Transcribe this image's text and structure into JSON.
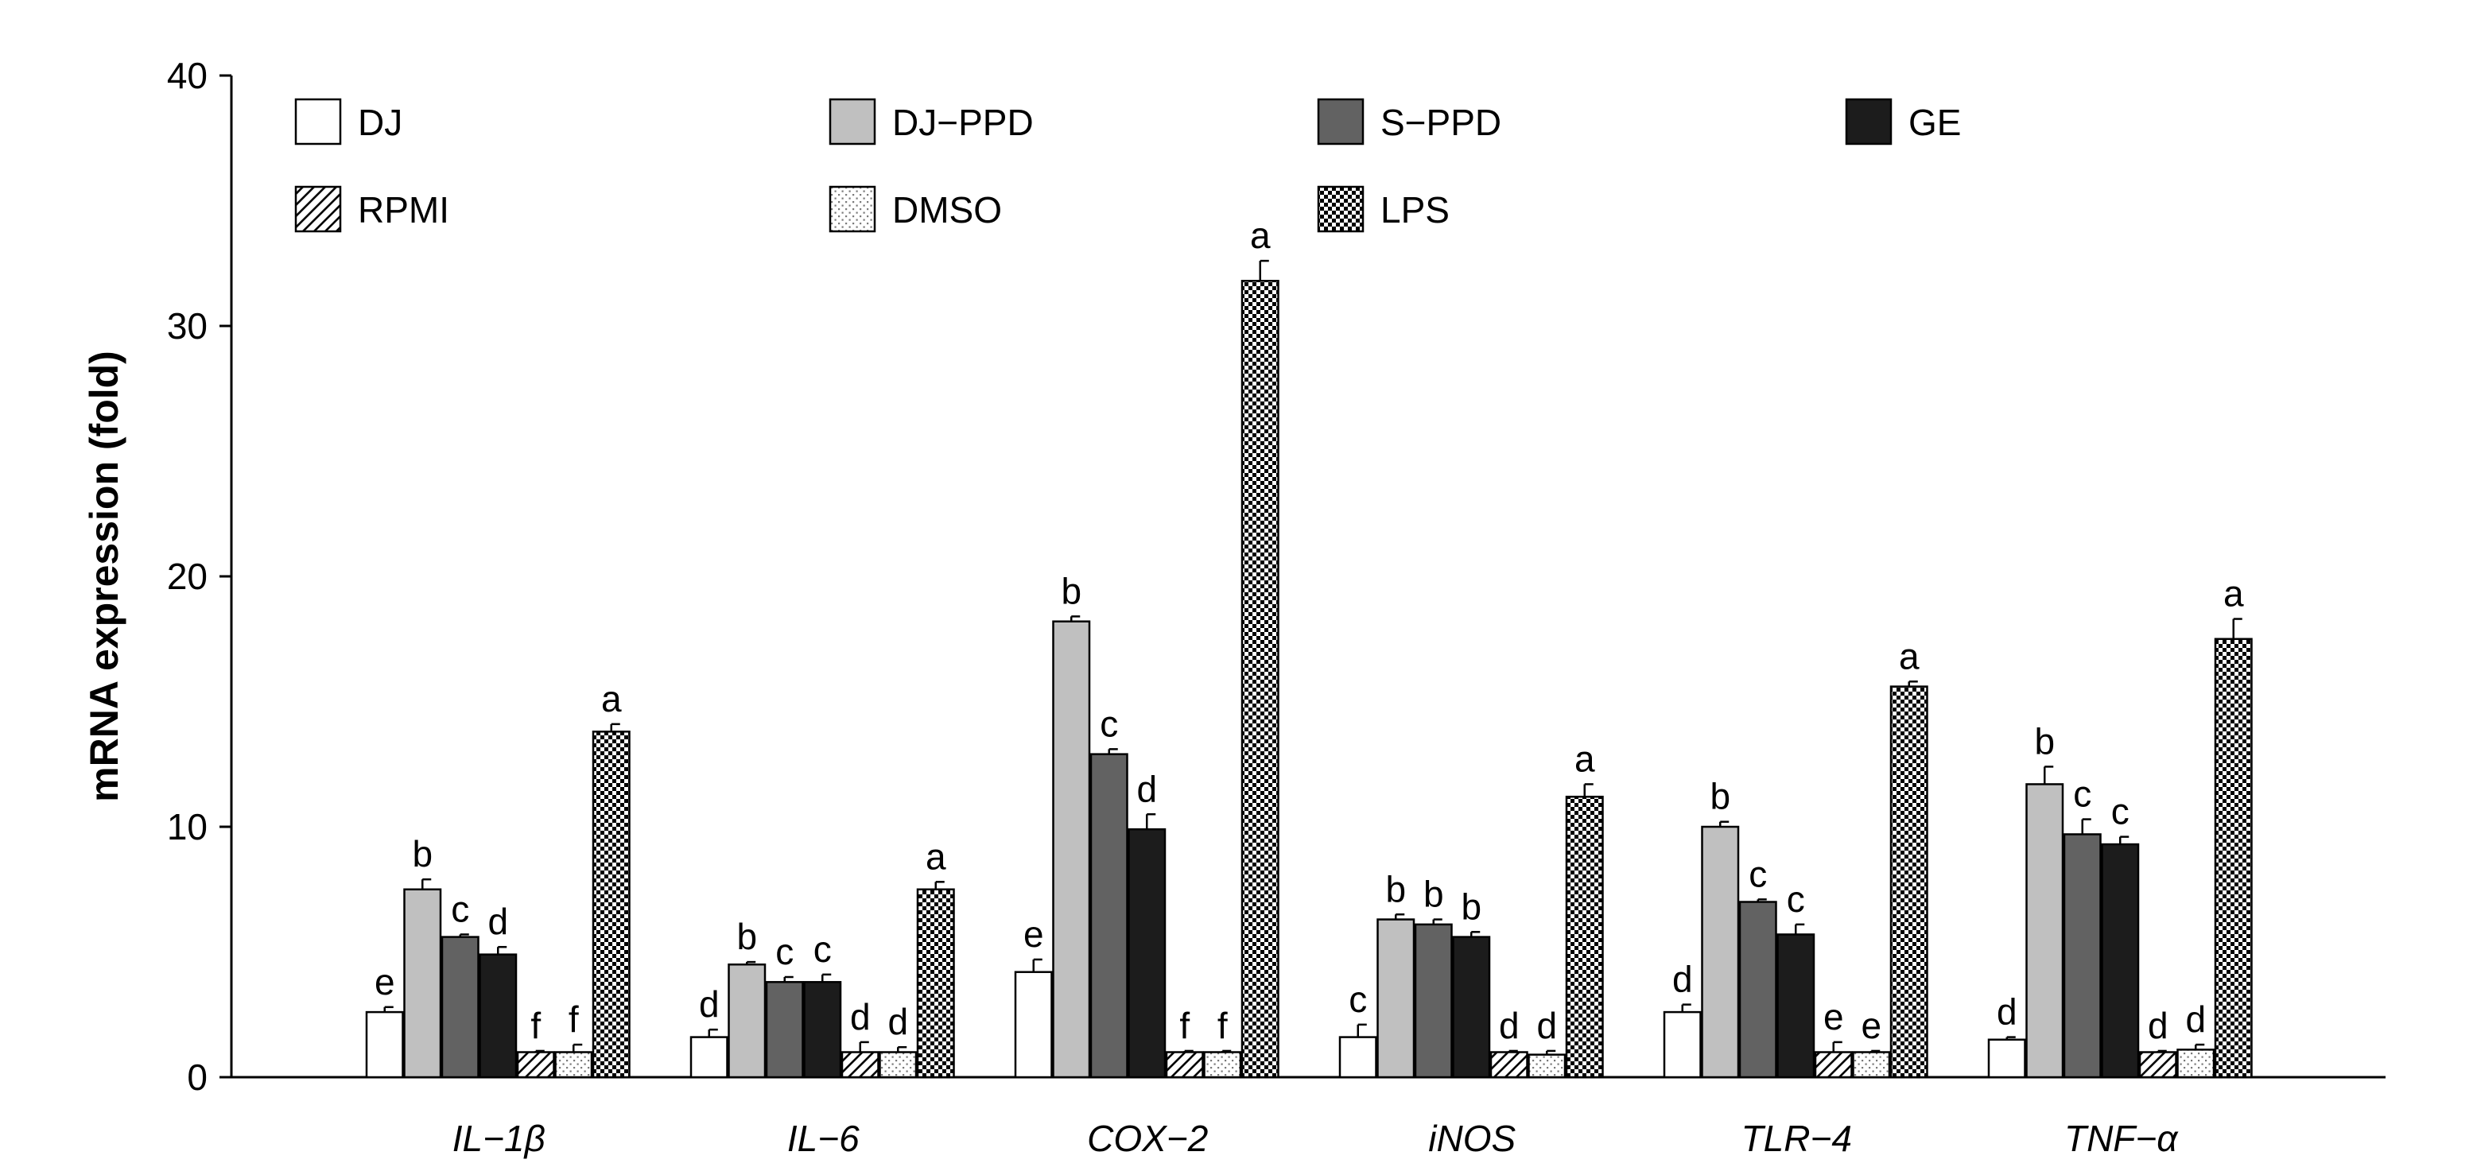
{
  "chart_data": {
    "type": "bar",
    "title": "",
    "xlabel": "",
    "ylabel": "mRNA expression (fold)",
    "ylim": [
      0,
      40
    ],
    "yticks": [
      0,
      10,
      20,
      30,
      40
    ],
    "grid": false,
    "legend_position": "top",
    "categories": [
      "IL−1β",
      "IL−6",
      "COX−2",
      "iNOS",
      "TLR−4",
      "TNF−α"
    ],
    "series": [
      {
        "name": "DJ",
        "pattern": "white",
        "values": [
          2.6,
          1.6,
          4.2,
          1.6,
          2.6,
          1.5
        ],
        "errors": [
          0.2,
          0.3,
          0.5,
          0.5,
          0.3,
          0.1
        ],
        "sig": [
          "e",
          "d",
          "e",
          "c",
          "d",
          "d"
        ]
      },
      {
        "name": "DJ−PPD",
        "pattern": "lightgray",
        "values": [
          7.5,
          4.5,
          18.2,
          6.3,
          10.0,
          11.7
        ],
        "errors": [
          0.4,
          0.1,
          0.2,
          0.2,
          0.2,
          0.7
        ],
        "sig": [
          "b",
          "b",
          "b",
          "b",
          "b",
          "b"
        ]
      },
      {
        "name": "S−PPD",
        "pattern": "darkgray",
        "values": [
          5.6,
          3.8,
          12.9,
          6.1,
          7.0,
          9.7
        ],
        "errors": [
          0.1,
          0.2,
          0.2,
          0.2,
          0.1,
          0.6
        ],
        "sig": [
          "c",
          "c",
          "c",
          "b",
          "c",
          "c"
        ]
      },
      {
        "name": "GE",
        "pattern": "black",
        "values": [
          4.9,
          3.8,
          9.9,
          5.6,
          5.7,
          9.3
        ],
        "errors": [
          0.3,
          0.3,
          0.6,
          0.2,
          0.4,
          0.3
        ],
        "sig": [
          "d",
          "c",
          "d",
          "b",
          "c",
          "c"
        ]
      },
      {
        "name": "RPMI",
        "pattern": "hatch",
        "values": [
          1.0,
          1.0,
          1.0,
          1.0,
          1.0,
          1.0
        ],
        "errors": [
          0.05,
          0.4,
          0.05,
          0.05,
          0.4,
          0.05
        ],
        "sig": [
          "f",
          "d",
          "f",
          "d",
          "e",
          "d"
        ]
      },
      {
        "name": "DMSO",
        "pattern": "dots",
        "values": [
          1.0,
          1.0,
          1.0,
          0.9,
          1.0,
          1.1
        ],
        "errors": [
          0.3,
          0.2,
          0.05,
          0.15,
          0.05,
          0.2
        ],
        "sig": [
          "f",
          "d",
          "f",
          "d",
          "e",
          "d"
        ]
      },
      {
        "name": "LPS",
        "pattern": "checker",
        "values": [
          13.8,
          7.5,
          31.8,
          11.2,
          15.6,
          17.5
        ],
        "errors": [
          0.3,
          0.3,
          0.8,
          0.5,
          0.2,
          0.8
        ],
        "sig": [
          "a",
          "a",
          "a",
          "a",
          "a",
          "a"
        ]
      }
    ]
  }
}
